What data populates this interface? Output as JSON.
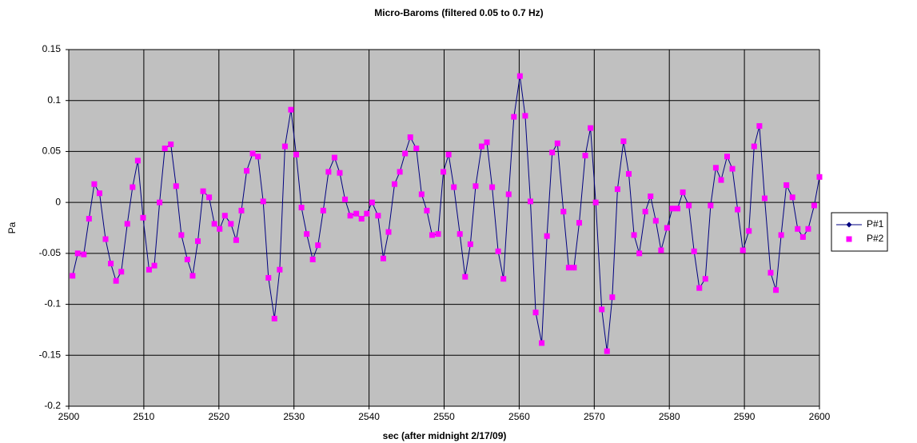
{
  "chart_data": {
    "type": "line",
    "title": "Micro-Baroms (filtered 0.05 to 0.7 Hz)",
    "x_label": "sec (after midnight 2/17/09)",
    "y_label": "Pa",
    "x": [
      2500.5,
      2501.2,
      2502.0,
      2502.7,
      2503.4,
      2504.1,
      2504.9,
      2505.6,
      2506.3,
      2507.0,
      2507.8,
      2508.5,
      2509.2,
      2509.9,
      2510.7,
      2511.4,
      2512.1,
      2512.8,
      2513.6,
      2514.3,
      2515.0,
      2515.8,
      2516.5,
      2517.2,
      2517.9,
      2518.7,
      2519.4,
      2520.1,
      2520.8,
      2521.6,
      2522.3,
      2523.0,
      2523.7,
      2524.5,
      2525.2,
      2525.9,
      2526.6,
      2527.4,
      2528.1,
      2528.8,
      2529.6,
      2530.3,
      2531.0,
      2531.7,
      2532.5,
      2533.2,
      2533.9,
      2534.6,
      2535.4,
      2536.1,
      2536.8,
      2537.5,
      2538.3,
      2539.0,
      2539.7,
      2540.4,
      2541.2,
      2541.9,
      2542.6,
      2543.4,
      2544.1,
      2544.8,
      2545.5,
      2546.3,
      2547.0,
      2547.7,
      2548.4,
      2549.2,
      2549.9,
      2550.6,
      2551.3,
      2552.1,
      2552.8,
      2553.5,
      2554.2,
      2555.0,
      2555.7,
      2556.4,
      2557.2,
      2557.9,
      2558.6,
      2559.3,
      2560.1,
      2560.8,
      2561.5,
      2562.2,
      2563.0,
      2563.7,
      2564.4,
      2565.1,
      2565.9,
      2566.6,
      2567.3,
      2568.0,
      2568.8,
      2569.5,
      2570.2,
      2571.0,
      2571.7,
      2572.4,
      2573.1,
      2573.9,
      2574.6,
      2575.3,
      2576.0,
      2576.8,
      2577.5,
      2578.2,
      2578.9,
      2579.7,
      2580.4,
      2581.1,
      2581.8,
      2582.6,
      2583.3,
      2584.0,
      2584.8,
      2585.5,
      2586.2,
      2586.9,
      2587.7,
      2588.4,
      2589.1,
      2589.8,
      2590.6,
      2591.3,
      2592.0,
      2592.7,
      2593.5,
      2594.2,
      2594.9,
      2595.6,
      2596.4,
      2597.1,
      2597.8,
      2598.5,
      2599.3,
      2600.0
    ],
    "series": [
      {
        "name": "P#1",
        "color": "#000080",
        "line": true,
        "marker": "diamond",
        "values": [
          -0.072,
          -0.05,
          -0.051,
          -0.016,
          0.018,
          0.009,
          -0.036,
          -0.06,
          -0.077,
          -0.068,
          -0.021,
          0.015,
          0.041,
          -0.015,
          -0.066,
          -0.062,
          0,
          0.053,
          0.057,
          0.016,
          -0.032,
          -0.056,
          -0.072,
          -0.038,
          0.011,
          0.005,
          -0.021,
          -0.026,
          -0.013,
          -0.021,
          -0.037,
          -0.008,
          0.031,
          0.048,
          0.045,
          0.001,
          -0.074,
          -0.114,
          -0.066,
          0.055,
          0.091,
          0.047,
          -0.005,
          -0.031,
          -0.056,
          -0.042,
          -0.008,
          0.03,
          0.044,
          0.029,
          0.003,
          -0.013,
          -0.011,
          -0.016,
          -0.011,
          0,
          -0.013,
          -0.055,
          -0.029,
          0.018,
          0.03,
          0.048,
          0.064,
          0.053,
          0.008,
          -0.008,
          -0.032,
          -0.031,
          0.03,
          0.047,
          0.015,
          -0.031,
          -0.073,
          -0.041,
          0.016,
          0.055,
          0.059,
          0.015,
          -0.048,
          -0.075,
          0.008,
          0.084,
          0.124,
          0.085,
          0.001,
          -0.108,
          -0.138,
          -0.033,
          0.049,
          0.058,
          -0.009,
          -0.064,
          -0.064,
          -0.02,
          0.046,
          0.073,
          0,
          -0.105,
          -0.146,
          -0.093,
          0.013,
          0.06,
          0.028,
          -0.032,
          -0.05,
          -0.009,
          0.006,
          -0.018,
          -0.047,
          -0.025,
          -0.006,
          -0.006,
          0.01,
          -0.003,
          -0.048,
          -0.084,
          -0.075,
          -0.003,
          0.034,
          0.022,
          0.045,
          0.033,
          -0.007,
          -0.047,
          -0.028,
          0.055,
          0.075,
          0.004,
          -0.069,
          -0.086,
          -0.032,
          0.017,
          0.005,
          -0.026,
          -0.034,
          -0.026,
          -0.003,
          0.025
        ]
      },
      {
        "name": "P#2",
        "color": "#ff00ff",
        "line": false,
        "marker": "square",
        "values": [
          -0.072,
          -0.05,
          -0.051,
          -0.016,
          0.018,
          0.009,
          -0.036,
          -0.06,
          -0.077,
          -0.068,
          -0.021,
          0.015,
          0.041,
          -0.015,
          -0.066,
          -0.062,
          0,
          0.053,
          0.057,
          0.016,
          -0.032,
          -0.056,
          -0.072,
          -0.038,
          0.011,
          0.005,
          -0.021,
          -0.026,
          -0.013,
          -0.021,
          -0.037,
          -0.008,
          0.031,
          0.048,
          0.045,
          0.001,
          -0.074,
          -0.114,
          -0.066,
          0.055,
          0.091,
          0.047,
          -0.005,
          -0.031,
          -0.056,
          -0.042,
          -0.008,
          0.03,
          0.044,
          0.029,
          0.003,
          -0.013,
          -0.011,
          -0.016,
          -0.011,
          0,
          -0.013,
          -0.055,
          -0.029,
          0.018,
          0.03,
          0.048,
          0.064,
          0.053,
          0.008,
          -0.008,
          -0.032,
          -0.031,
          0.03,
          0.047,
          0.015,
          -0.031,
          -0.073,
          -0.041,
          0.016,
          0.055,
          0.059,
          0.015,
          -0.048,
          -0.075,
          0.008,
          0.084,
          0.124,
          0.085,
          0.001,
          -0.108,
          -0.138,
          -0.033,
          0.049,
          0.058,
          -0.009,
          -0.064,
          -0.064,
          -0.02,
          0.046,
          0.073,
          0,
          -0.105,
          -0.146,
          -0.093,
          0.013,
          0.06,
          0.028,
          -0.032,
          -0.05,
          -0.009,
          0.006,
          -0.018,
          -0.047,
          -0.025,
          -0.006,
          -0.006,
          0.01,
          -0.003,
          -0.048,
          -0.084,
          -0.075,
          -0.003,
          0.034,
          0.022,
          0.045,
          0.033,
          -0.007,
          -0.047,
          -0.028,
          0.055,
          0.075,
          0.004,
          -0.069,
          -0.086,
          -0.032,
          0.017,
          0.005,
          -0.026,
          -0.034,
          -0.026,
          -0.003,
          0.025
        ]
      }
    ],
    "xlim": [
      2500,
      2600
    ],
    "xticks": [
      2500,
      2510,
      2520,
      2530,
      2540,
      2550,
      2560,
      2570,
      2580,
      2590,
      2600
    ],
    "ylim": [
      -0.2,
      0.15
    ],
    "yticks": [
      -0.2,
      -0.15,
      -0.1,
      -0.05,
      0,
      0.05,
      0.1,
      0.15
    ],
    "grid": true,
    "plot_background": "#c0c0c0",
    "legend": "right"
  }
}
